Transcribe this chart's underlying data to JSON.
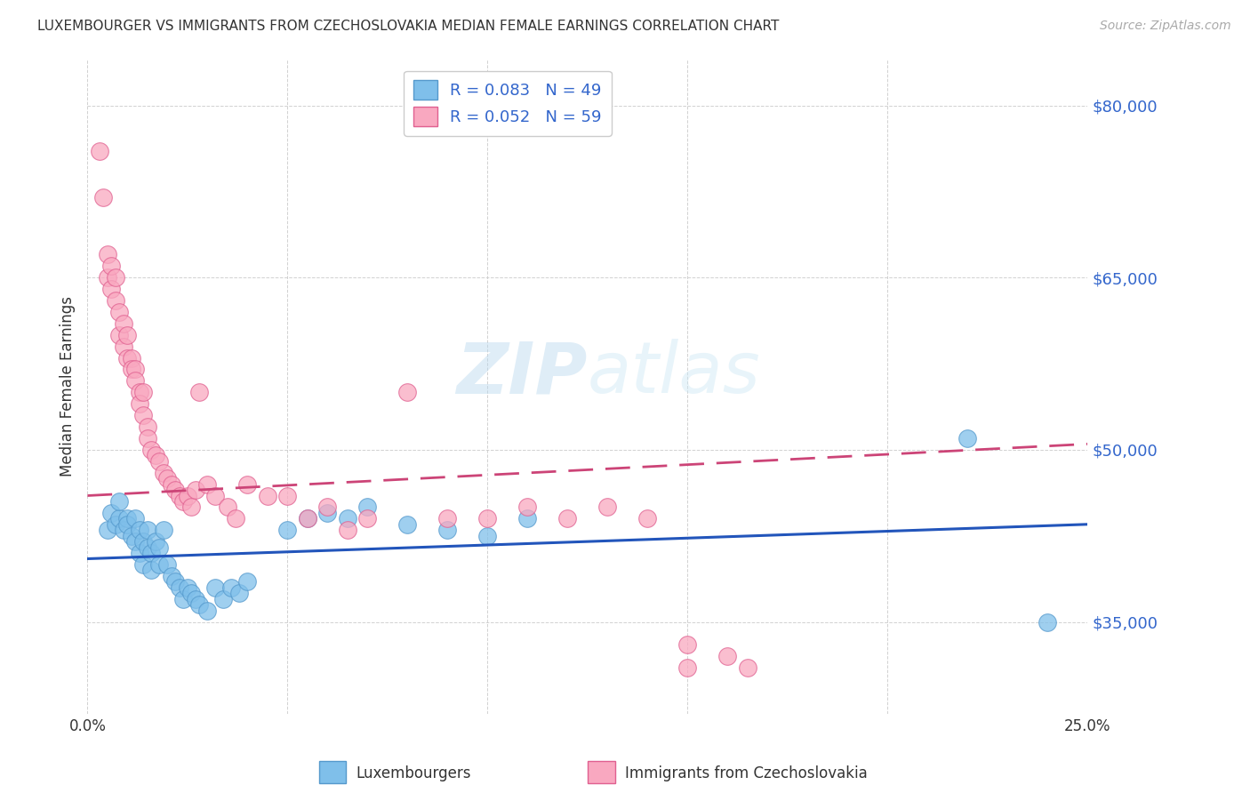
{
  "title": "LUXEMBOURGER VS IMMIGRANTS FROM CZECHOSLOVAKIA MEDIAN FEMALE EARNINGS CORRELATION CHART",
  "source": "Source: ZipAtlas.com",
  "ylabel": "Median Female Earnings",
  "xlim": [
    0.0,
    0.25
  ],
  "ylim": [
    27000,
    84000
  ],
  "yticks": [
    35000,
    50000,
    65000,
    80000
  ],
  "ytick_labels": [
    "$35,000",
    "$50,000",
    "$65,000",
    "$80,000"
  ],
  "xtick_pos": [
    0.0,
    0.05,
    0.1,
    0.15,
    0.2,
    0.25
  ],
  "xtick_labels": [
    "0.0%",
    "",
    "",
    "",
    "",
    "25.0%"
  ],
  "blue_color": "#7fbfea",
  "pink_color": "#f9a8c0",
  "blue_edge": "#5599cc",
  "pink_edge": "#e06090",
  "blue_line_color": "#2255bb",
  "pink_line_color": "#cc4477",
  "blue_R": 0.083,
  "blue_N": 49,
  "pink_R": 0.052,
  "pink_N": 59,
  "watermark_color": "#cce4f5",
  "blue_scatter_x": [
    0.005,
    0.006,
    0.007,
    0.008,
    0.008,
    0.009,
    0.01,
    0.01,
    0.011,
    0.012,
    0.012,
    0.013,
    0.013,
    0.014,
    0.014,
    0.015,
    0.015,
    0.016,
    0.016,
    0.017,
    0.018,
    0.018,
    0.019,
    0.02,
    0.021,
    0.022,
    0.023,
    0.024,
    0.025,
    0.026,
    0.027,
    0.028,
    0.03,
    0.032,
    0.034,
    0.036,
    0.038,
    0.04,
    0.05,
    0.055,
    0.06,
    0.065,
    0.07,
    0.08,
    0.09,
    0.1,
    0.11,
    0.22,
    0.24
  ],
  "blue_scatter_y": [
    43000,
    44500,
    43500,
    44000,
    45500,
    43000,
    44000,
    43500,
    42500,
    42000,
    44000,
    43000,
    41000,
    42000,
    40000,
    41500,
    43000,
    41000,
    39500,
    42000,
    40000,
    41500,
    43000,
    40000,
    39000,
    38500,
    38000,
    37000,
    38000,
    37500,
    37000,
    36500,
    36000,
    38000,
    37000,
    38000,
    37500,
    38500,
    43000,
    44000,
    44500,
    44000,
    45000,
    43500,
    43000,
    42500,
    44000,
    51000,
    35000
  ],
  "pink_scatter_x": [
    0.003,
    0.004,
    0.005,
    0.005,
    0.006,
    0.006,
    0.007,
    0.007,
    0.008,
    0.008,
    0.009,
    0.009,
    0.01,
    0.01,
    0.011,
    0.011,
    0.012,
    0.012,
    0.013,
    0.013,
    0.014,
    0.014,
    0.015,
    0.015,
    0.016,
    0.017,
    0.018,
    0.019,
    0.02,
    0.021,
    0.022,
    0.023,
    0.024,
    0.025,
    0.026,
    0.027,
    0.028,
    0.03,
    0.032,
    0.035,
    0.037,
    0.04,
    0.045,
    0.05,
    0.055,
    0.06,
    0.065,
    0.07,
    0.08,
    0.09,
    0.1,
    0.11,
    0.12,
    0.13,
    0.14,
    0.15,
    0.16,
    0.165,
    0.15
  ],
  "pink_scatter_y": [
    76000,
    72000,
    67000,
    65000,
    66000,
    64000,
    65000,
    63000,
    62000,
    60000,
    61000,
    59000,
    60000,
    58000,
    58000,
    57000,
    57000,
    56000,
    55000,
    54000,
    55000,
    53000,
    52000,
    51000,
    50000,
    49500,
    49000,
    48000,
    47500,
    47000,
    46500,
    46000,
    45500,
    46000,
    45000,
    46500,
    55000,
    47000,
    46000,
    45000,
    44000,
    47000,
    46000,
    46000,
    44000,
    45000,
    43000,
    44000,
    55000,
    44000,
    44000,
    45000,
    44000,
    45000,
    44000,
    33000,
    32000,
    31000,
    31000
  ]
}
